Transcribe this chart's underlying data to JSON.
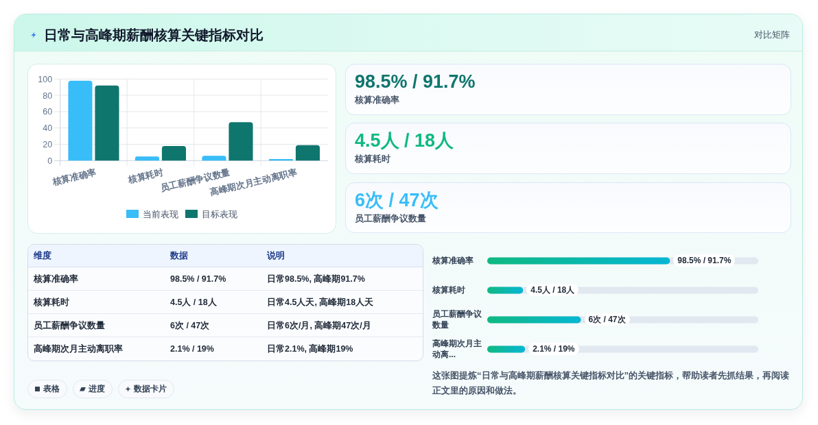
{
  "chart_data": [
    {
      "type": "bar",
      "title": "日常与高峰期薪酬核算关键指标对比",
      "categories": [
        "核算准确率",
        "核算耗时",
        "员工薪酬争议数量",
        "高峰期次月主动离职率"
      ],
      "series": [
        {
          "name": "当前表现",
          "color": "#38bdf8",
          "values": [
            98,
            5,
            6,
            2
          ]
        },
        {
          "name": "目标表现",
          "color": "#0f766e",
          "values": [
            92,
            18,
            47,
            19
          ]
        }
      ],
      "ylim": [
        0,
        100
      ],
      "yticks": [
        0,
        20,
        40,
        60,
        80,
        100
      ],
      "grid": true,
      "legend": "bottom"
    },
    {
      "type": "other",
      "title": "对比矩阵",
      "annotations": [
        "98.5% / 91.7%",
        "核算准确率",
        "4.5人 / 18人",
        "核算耗时",
        "6次 / 47次",
        "员工薪酬争议数量"
      ],
      "colors": [
        "#0f766e",
        "#10b981",
        "#38bdf8"
      ]
    },
    {
      "type": "other",
      "categories": [
        "维度",
        "数据",
        "说明"
      ],
      "cell_labels": [
        [
          "核算准确率",
          "98.5% / 91.7%",
          "日常98.5%, 高峰期91.7%"
        ],
        [
          "核算耗时",
          "4.5人 / 18人",
          "日常4.5人天, 高峰期18人天"
        ],
        [
          "员工薪酬争议数量",
          "6次 / 47次",
          "日常6次/月, 高峰期47次/月"
        ],
        [
          "高峰期次月主动离职率",
          "2.1% / 19%",
          "日常2.1%, 高峰期19%"
        ]
      ],
      "annotations": [
        "表格",
        "进度",
        "数据卡片"
      ]
    },
    {
      "type": "bar",
      "orientation": "horizontal",
      "categories": [
        "核算准确率",
        "核算耗时",
        "员工薪酬争议数量",
        "高峰期次月主动离..."
      ],
      "values": [
        91.7,
        18,
        47,
        19
      ],
      "value_labels": [
        "98.5% / 91.7%",
        "4.5人 / 18人",
        "6次 / 47次",
        "2.1% / 19%"
      ],
      "xlim": [
        0,
        136
      ],
      "tick_labels": "y",
      "color": "#10b981",
      "annotations": [
        "这张图提炼“日常与高峰期薪酬核算关键指标对比”的关键指标，帮助读者先抓结果，再阅读正文里的原因和做法。"
      ]
    }
  ]
}
